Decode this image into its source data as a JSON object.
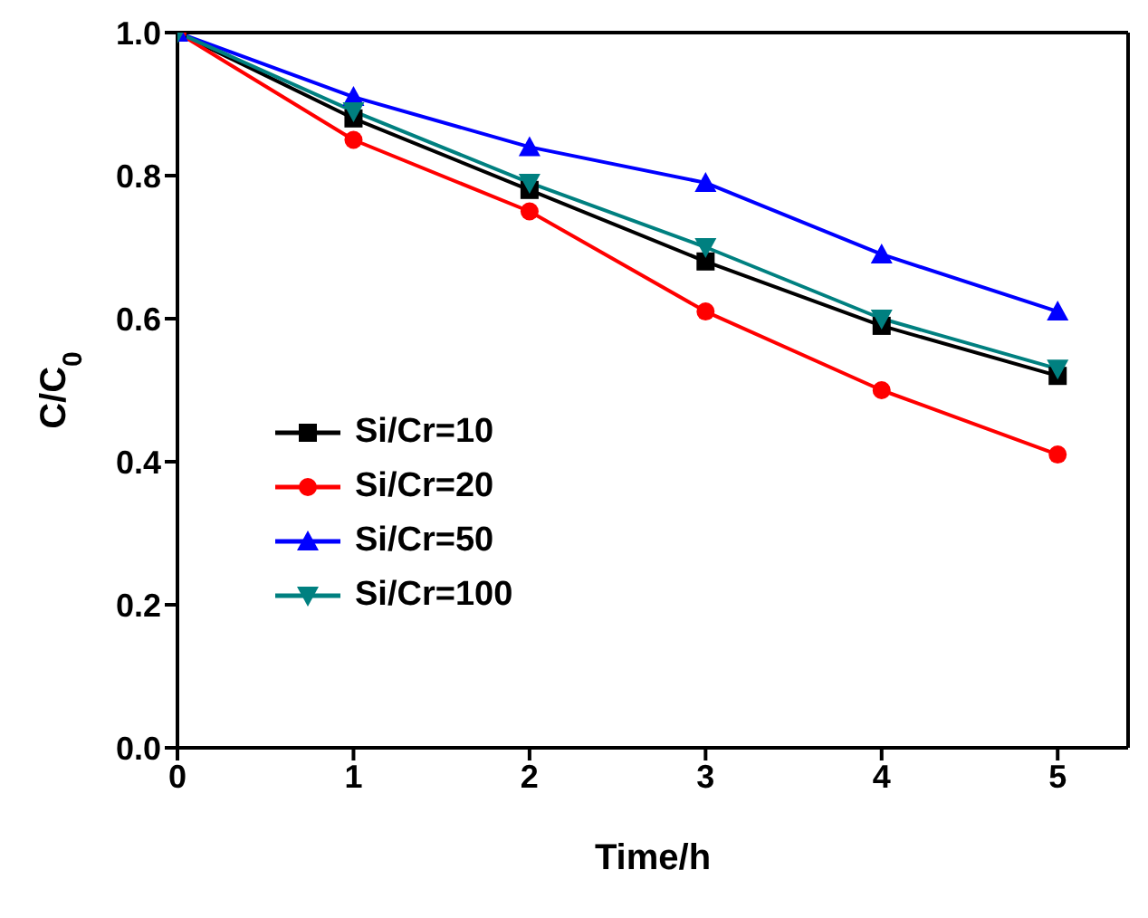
{
  "chart_data": {
    "type": "line",
    "xlabel": "Time/h",
    "ylabel": "C/C$_{0}$",
    "x": [
      0,
      1,
      2,
      3,
      4,
      5
    ],
    "series": [
      {
        "name": "Si/Cr=10",
        "color": "#000000",
        "marker": "square",
        "values": [
          1.0,
          0.88,
          0.78,
          0.68,
          0.59,
          0.52
        ]
      },
      {
        "name": "Si/Cr=20",
        "color": "#ff0000",
        "marker": "circle",
        "values": [
          1.0,
          0.85,
          0.75,
          0.61,
          0.5,
          0.41
        ]
      },
      {
        "name": "Si/Cr=50",
        "color": "#0000ff",
        "marker": "triangle",
        "values": [
          1.0,
          0.91,
          0.84,
          0.79,
          0.69,
          0.61
        ]
      },
      {
        "name": "Si/Cr=100",
        "color": "#008080",
        "marker": "triangle-down",
        "values": [
          1.0,
          0.89,
          0.79,
          0.7,
          0.6,
          0.53
        ]
      }
    ],
    "xlim": [
      0,
      5.4
    ],
    "xticks": [
      0,
      1,
      2,
      3,
      4,
      5
    ],
    "ylim": [
      0,
      1.0
    ],
    "yticks": [
      {
        "value": 0,
        "label": "0.0"
      },
      0.2,
      0.4,
      0.6,
      0.8,
      {
        "value": 1,
        "label": "1.0"
      }
    ],
    "legend": "left",
    "grid": false
  }
}
